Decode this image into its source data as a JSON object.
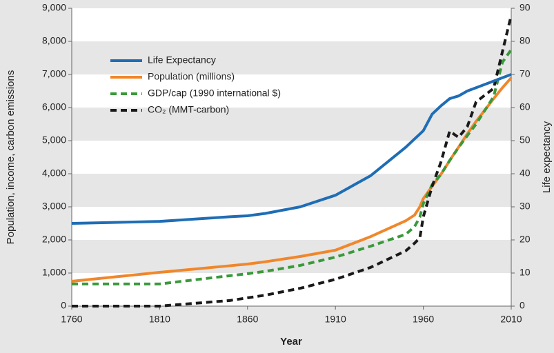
{
  "chart_data": {
    "type": "line",
    "x_label": "Year",
    "y_label": "Population, income, carbon emissions",
    "y2_label": "Life expectancy",
    "x": [
      1760,
      1810,
      1850,
      1860,
      1870,
      1890,
      1910,
      1930,
      1950,
      1955,
      1958,
      1960,
      1965,
      1970,
      1975,
      1980,
      1985,
      1990,
      2000,
      2005,
      2010
    ],
    "series": [
      {
        "name": "Life Expectancy",
        "color": "#1f6db5",
        "dashed": false,
        "axis": "y2",
        "values": [
          25,
          25.6,
          27,
          27.3,
          28,
          30,
          33.5,
          39.4,
          48,
          50.5,
          52,
          53,
          58,
          60.5,
          62.7,
          63.5,
          65,
          66,
          68,
          69,
          70
        ]
      },
      {
        "name": "Population (millions)",
        "color": "#f0872b",
        "dashed": false,
        "values": [
          750,
          1020,
          1220,
          1270,
          1340,
          1500,
          1690,
          2100,
          2580,
          2750,
          3000,
          3250,
          3620,
          3980,
          4400,
          4800,
          5200,
          5580,
          6270,
          6600,
          6900
        ]
      },
      {
        "name": "GDP/cap (1990 international $)",
        "color": "#3a9a3a",
        "dashed": true,
        "values": [
          670,
          670,
          920,
          980,
          1050,
          1230,
          1480,
          1810,
          2170,
          2400,
          2690,
          3100,
          3670,
          3980,
          4400,
          4790,
          5150,
          5500,
          6330,
          7370,
          7750
        ]
      },
      {
        "name": "CO₂ (MMT-carbon)",
        "color": "#1a1a1a",
        "dashed": true,
        "values": [
          0,
          0,
          170,
          250,
          330,
          540,
          810,
          1170,
          1670,
          1900,
          2060,
          2700,
          3620,
          4350,
          5290,
          5100,
          5420,
          6170,
          6580,
          7690,
          8790
        ]
      }
    ],
    "xlim": [
      1760,
      2010
    ],
    "xticks": [
      1760,
      1810,
      1860,
      1910,
      1960,
      2010
    ],
    "ylim": [
      0,
      9000
    ],
    "yticks": [
      0,
      {
        "value": 1000,
        "label": "1,000"
      },
      {
        "value": 2000,
        "label": "2,000"
      },
      {
        "value": 3000,
        "label": "3,000"
      },
      {
        "value": 4000,
        "label": "4,000"
      },
      {
        "value": 5000,
        "label": "5,000"
      },
      {
        "value": 6000,
        "label": "6,000"
      },
      {
        "value": 7000,
        "label": "7,000"
      },
      {
        "value": 8000,
        "label": "8,000"
      },
      {
        "value": 9000,
        "label": "9,000"
      }
    ],
    "y2lim": [
      0,
      90
    ],
    "y2ticks": [
      0,
      10,
      20,
      30,
      40,
      50,
      60,
      70,
      80,
      90
    ],
    "grid": "bands",
    "legend": "upper left"
  }
}
